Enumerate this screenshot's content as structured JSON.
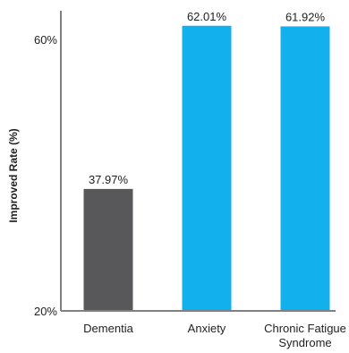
{
  "chart_data": {
    "type": "bar",
    "title": "",
    "xlabel": "",
    "ylabel": "Improved Rate (%)",
    "ylim": [
      20,
      64
    ],
    "yticks": [
      {
        "value": 60,
        "label": "60%"
      },
      {
        "value": 20,
        "label": "20%"
      }
    ],
    "grid": false,
    "categories": [
      [
        "Dementia"
      ],
      [
        "Anxiety"
      ],
      [
        "Chronic Fatigue",
        "Syndrome"
      ]
    ],
    "values": [
      37.97,
      62.01,
      61.92
    ],
    "value_labels": [
      "37.97%",
      "62.01%",
      "61.92%"
    ],
    "bar_colors": [
      "#58585a",
      "#12b0ec",
      "#12b0ec"
    ],
    "axis_color": "#808080"
  }
}
